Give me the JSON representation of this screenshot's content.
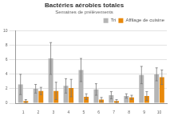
{
  "chart_data": {
    "type": "bar",
    "title": "Bactéries aérobies totales",
    "subtitle": "Semaines de prélèvements",
    "categories": [
      "1",
      "2",
      "3",
      "4",
      "5",
      "6",
      "7",
      "8",
      "9",
      "10"
    ],
    "series": [
      {
        "name": "Tri",
        "color": "#b5b5b5",
        "values": [
          2.6,
          2.0,
          6.2,
          2.4,
          4.6,
          1.9,
          1.1,
          1.0,
          3.9,
          4.0
        ],
        "errors": [
          1.4,
          0.6,
          2.2,
          1.0,
          1.6,
          0.8,
          0.5,
          0.3,
          1.2,
          0.9
        ]
      },
      {
        "name": "Affilage de cuisine",
        "color": "#e8890c",
        "values": [
          0.3,
          1.7,
          1.7,
          2.1,
          0.9,
          0.5,
          0.3,
          0.8,
          1.0,
          3.6
        ],
        "errors": [
          0.2,
          0.5,
          1.2,
          1.2,
          0.4,
          0.3,
          0.2,
          0.3,
          0.6,
          1.0
        ]
      }
    ],
    "ylim": [
      0,
      10
    ],
    "yticks": [
      0,
      2,
      4,
      6,
      8,
      10
    ],
    "grid": true,
    "legend": "top-right"
  }
}
